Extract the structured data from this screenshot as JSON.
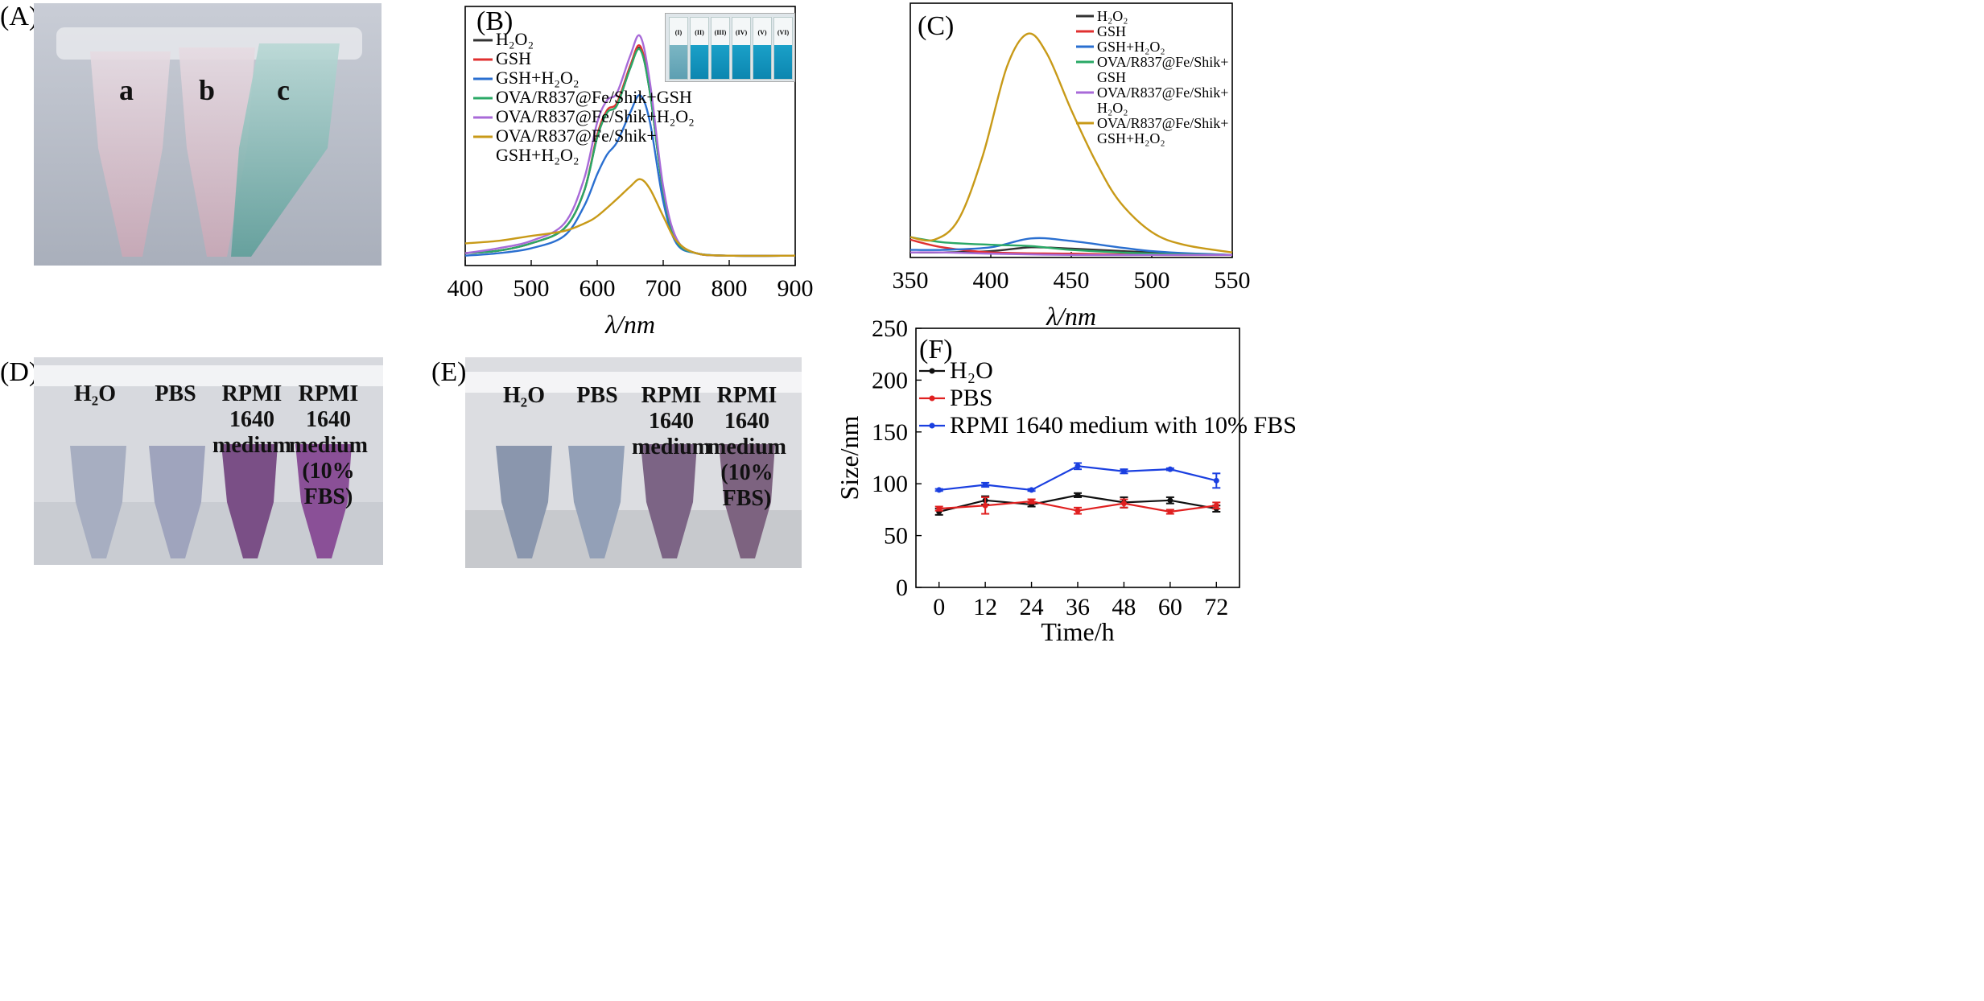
{
  "panels": {
    "A": {
      "label": "(A)",
      "tubes": [
        "a",
        "b",
        "c"
      ]
    },
    "B": {
      "label": "(B)",
      "inset_labels": [
        "(I)",
        "(II)",
        "(III)",
        "(IV)",
        "(V)",
        "(VI)"
      ]
    },
    "C": {
      "label": "(C)"
    },
    "D": {
      "label": "(D)",
      "tubes": [
        "H₂O",
        "PBS",
        "RPMI 1640\nmedium",
        "RPMI 1640\nmedium\n(10% FBS)"
      ]
    },
    "E": {
      "label": "(E)",
      "tubes": [
        "H₂O",
        "PBS",
        "RPMI 1640\nmedium",
        "RPMI 1640\nmedium\n(10% FBS)"
      ]
    },
    "F": {
      "label": "(F)"
    }
  },
  "colors": {
    "black": "#333333",
    "red": "#e03030",
    "blue": "#2a6fd0",
    "green": "#2aa866",
    "purple": "#a86ad8",
    "gold": "#c89a18"
  },
  "chart_data": [
    {
      "id": "B",
      "type": "line",
      "xlabel": "λ/nm",
      "ylabel": "",
      "xlim": [
        400,
        900
      ],
      "ylim": [
        0,
        1.05
      ],
      "xticks": [
        400,
        500,
        600,
        700,
        800,
        900
      ],
      "series": [
        {
          "name": "H₂O₂",
          "color": "#333333",
          "points": [
            [
              400,
              0.05
            ],
            [
              450,
              0.06
            ],
            [
              500,
              0.09
            ],
            [
              550,
              0.15
            ],
            [
              580,
              0.3
            ],
            [
              600,
              0.52
            ],
            [
              615,
              0.62
            ],
            [
              630,
              0.65
            ],
            [
              650,
              0.8
            ],
            [
              665,
              0.88
            ],
            [
              680,
              0.7
            ],
            [
              700,
              0.3
            ],
            [
              720,
              0.1
            ],
            [
              750,
              0.05
            ],
            [
              800,
              0.04
            ],
            [
              900,
              0.04
            ]
          ]
        },
        {
          "name": "GSH",
          "color": "#e03030",
          "points": [
            [
              400,
              0.05
            ],
            [
              450,
              0.06
            ],
            [
              500,
              0.09
            ],
            [
              550,
              0.15
            ],
            [
              580,
              0.3
            ],
            [
              600,
              0.53
            ],
            [
              615,
              0.63
            ],
            [
              630,
              0.66
            ],
            [
              650,
              0.81
            ],
            [
              665,
              0.89
            ],
            [
              680,
              0.71
            ],
            [
              700,
              0.3
            ],
            [
              720,
              0.1
            ],
            [
              750,
              0.05
            ],
            [
              800,
              0.04
            ],
            [
              900,
              0.04
            ]
          ]
        },
        {
          "name": "GSH+H₂O₂",
          "color": "#2a6fd0",
          "points": [
            [
              400,
              0.04
            ],
            [
              450,
              0.05
            ],
            [
              500,
              0.07
            ],
            [
              550,
              0.12
            ],
            [
              580,
              0.24
            ],
            [
              600,
              0.37
            ],
            [
              615,
              0.45
            ],
            [
              630,
              0.5
            ],
            [
              650,
              0.62
            ],
            [
              665,
              0.69
            ],
            [
              680,
              0.58
            ],
            [
              700,
              0.26
            ],
            [
              720,
              0.09
            ],
            [
              750,
              0.05
            ],
            [
              800,
              0.04
            ],
            [
              900,
              0.04
            ]
          ]
        },
        {
          "name": "OVA/R837@Fe/Shik+GSH",
          "color": "#2aa866",
          "points": [
            [
              400,
              0.05
            ],
            [
              450,
              0.06
            ],
            [
              500,
              0.09
            ],
            [
              550,
              0.15
            ],
            [
              580,
              0.3
            ],
            [
              600,
              0.52
            ],
            [
              615,
              0.62
            ],
            [
              630,
              0.65
            ],
            [
              650,
              0.8
            ],
            [
              665,
              0.875
            ],
            [
              680,
              0.7
            ],
            [
              700,
              0.3
            ],
            [
              720,
              0.1
            ],
            [
              750,
              0.05
            ],
            [
              800,
              0.04
            ],
            [
              900,
              0.04
            ]
          ]
        },
        {
          "name": "OVA/R837@Fe/Shik+H₂O₂",
          "color": "#a86ad8",
          "points": [
            [
              400,
              0.05
            ],
            [
              450,
              0.07
            ],
            [
              500,
              0.1
            ],
            [
              550,
              0.17
            ],
            [
              580,
              0.35
            ],
            [
              600,
              0.58
            ],
            [
              615,
              0.67
            ],
            [
              630,
              0.7
            ],
            [
              650,
              0.85
            ],
            [
              665,
              0.93
            ],
            [
              680,
              0.74
            ],
            [
              700,
              0.32
            ],
            [
              720,
              0.11
            ],
            [
              750,
              0.05
            ],
            [
              800,
              0.04
            ],
            [
              900,
              0.04
            ]
          ]
        },
        {
          "name": "OVA/R837@Fe/Shik+\nGSH+H₂O₂",
          "color": "#c89a18",
          "points": [
            [
              400,
              0.09
            ],
            [
              450,
              0.1
            ],
            [
              500,
              0.12
            ],
            [
              550,
              0.14
            ],
            [
              580,
              0.17
            ],
            [
              600,
              0.2
            ],
            [
              630,
              0.27
            ],
            [
              650,
              0.32
            ],
            [
              665,
              0.35
            ],
            [
              680,
              0.31
            ],
            [
              700,
              0.2
            ],
            [
              720,
              0.1
            ],
            [
              750,
              0.05
            ],
            [
              800,
              0.04
            ],
            [
              900,
              0.04
            ]
          ]
        }
      ]
    },
    {
      "id": "C",
      "type": "line",
      "xlabel": "λ/nm",
      "ylabel": "",
      "xlim": [
        350,
        550
      ],
      "ylim": [
        0,
        1.0
      ],
      "xticks": [
        350,
        400,
        450,
        500,
        550
      ],
      "series": [
        {
          "name": "H₂O₂",
          "color": "#333333",
          "points": [
            [
              350,
              0.02
            ],
            [
              370,
              0.02
            ],
            [
              400,
              0.025
            ],
            [
              425,
              0.04
            ],
            [
              450,
              0.035
            ],
            [
              500,
              0.02
            ],
            [
              550,
              0.01
            ]
          ]
        },
        {
          "name": "GSH",
          "color": "#e03030",
          "points": [
            [
              350,
              0.07
            ],
            [
              370,
              0.04
            ],
            [
              400,
              0.02
            ],
            [
              450,
              0.015
            ],
            [
              500,
              0.01
            ],
            [
              550,
              0.01
            ]
          ]
        },
        {
          "name": "GSH+H₂O₂",
          "color": "#2a6fd0",
          "points": [
            [
              350,
              0.03
            ],
            [
              370,
              0.03
            ],
            [
              400,
              0.04
            ],
            [
              425,
              0.075
            ],
            [
              450,
              0.065
            ],
            [
              500,
              0.025
            ],
            [
              550,
              0.01
            ]
          ]
        },
        {
          "name": "OVA/R837@Fe/Shik+\nGSH",
          "color": "#2aa866",
          "points": [
            [
              350,
              0.08
            ],
            [
              370,
              0.06
            ],
            [
              400,
              0.05
            ],
            [
              425,
              0.045
            ],
            [
              450,
              0.03
            ],
            [
              500,
              0.015
            ],
            [
              550,
              0.01
            ]
          ]
        },
        {
          "name": "OVA/R837@Fe/Shik+\nH₂O₂",
          "color": "#a86ad8",
          "points": [
            [
              350,
              0.02
            ],
            [
              370,
              0.02
            ],
            [
              400,
              0.015
            ],
            [
              450,
              0.01
            ],
            [
              500,
              0.01
            ],
            [
              550,
              0.01
            ]
          ]
        },
        {
          "name": "OVA/R837@Fe/Shik+\nGSH+H₂O₂",
          "color": "#c89a18",
          "points": [
            [
              350,
              0.08
            ],
            [
              365,
              0.07
            ],
            [
              380,
              0.15
            ],
            [
              395,
              0.4
            ],
            [
              410,
              0.75
            ],
            [
              423,
              0.88
            ],
            [
              435,
              0.8
            ],
            [
              450,
              0.58
            ],
            [
              465,
              0.38
            ],
            [
              480,
              0.22
            ],
            [
              500,
              0.1
            ],
            [
              520,
              0.05
            ],
            [
              550,
              0.02
            ]
          ]
        }
      ]
    },
    {
      "id": "F",
      "type": "line",
      "xlabel": "Time/h",
      "ylabel": "Size/nm",
      "xlim": [
        -6,
        78
      ],
      "ylim": [
        0,
        250
      ],
      "xticks": [
        0,
        12,
        24,
        36,
        48,
        60,
        72
      ],
      "yticks": [
        0,
        50,
        100,
        150,
        200,
        250
      ],
      "series": [
        {
          "name": "H₂O",
          "color": "#111111",
          "x": [
            0,
            12,
            24,
            36,
            48,
            60,
            72
          ],
          "y": [
            73,
            84,
            80,
            89,
            82,
            84,
            76
          ],
          "err": [
            3,
            4,
            2,
            2,
            5,
            3,
            3
          ]
        },
        {
          "name": "PBS",
          "color": "#e02020",
          "x": [
            0,
            12,
            24,
            36,
            48,
            60,
            72
          ],
          "y": [
            76,
            79,
            83,
            74,
            81,
            73,
            79
          ],
          "err": [
            2,
            8,
            2,
            3,
            4,
            2,
            3
          ]
        },
        {
          "name": "RPMI 1640 medium with 10% FBS",
          "color": "#1a3fe0",
          "x": [
            0,
            12,
            24,
            36,
            48,
            60,
            72
          ],
          "y": [
            94,
            99,
            94,
            117,
            112,
            114,
            103
          ],
          "err": [
            1,
            2,
            1,
            3,
            2,
            1,
            7
          ]
        }
      ]
    }
  ]
}
